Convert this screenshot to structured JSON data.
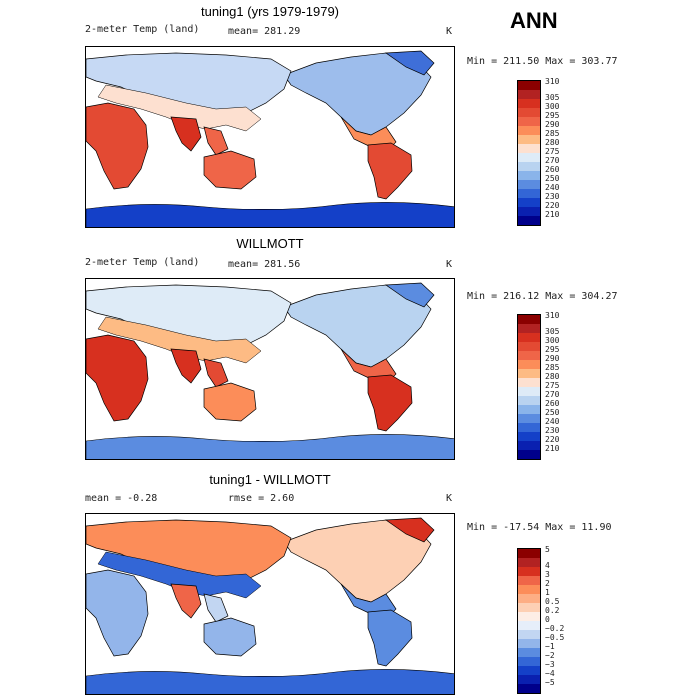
{
  "season": "ANN",
  "panels": [
    {
      "title": "tuning1 (yrs 1979-1979)",
      "left_label": "2-meter Temp (land)",
      "mean_label": "mean= 281.29",
      "unit": "K",
      "minmax": "Min = 211.50 Max = 303.77",
      "colorbar_labels": [
        "310",
        "305",
        "300",
        "295",
        "290",
        "285",
        "280",
        "275",
        "270",
        "260",
        "250",
        "240",
        "230",
        "220",
        "210"
      ],
      "colorbar_colors": [
        "#8b0000",
        "#b22222",
        "#d7301f",
        "#e34a33",
        "#ef6548",
        "#fc8d59",
        "#fdbb84",
        "#fde0d0",
        "#deebf7",
        "#b9d3f0",
        "#8ab4ea",
        "#5b8ce0",
        "#3366d6",
        "#1440c8",
        "#0a20b0",
        "#00008b"
      ]
    },
    {
      "title": "WILLMOTT",
      "left_label": "2-meter Temp (land)",
      "mean_label": "mean= 281.56",
      "unit": "K",
      "minmax": "Min = 216.12 Max = 304.27",
      "colorbar_labels": [
        "310",
        "305",
        "300",
        "295",
        "290",
        "285",
        "280",
        "275",
        "270",
        "260",
        "250",
        "240",
        "230",
        "220",
        "210"
      ],
      "colorbar_colors": [
        "#8b0000",
        "#b22222",
        "#d7301f",
        "#e34a33",
        "#ef6548",
        "#fc8d59",
        "#fdbb84",
        "#fde0d0",
        "#deebf7",
        "#b9d3f0",
        "#8ab4ea",
        "#5b8ce0",
        "#3366d6",
        "#1440c8",
        "#0a20b0",
        "#00008b"
      ]
    },
    {
      "title": "tuning1 - WILLMOTT",
      "left_label": "mean =   -0.28",
      "mean_label": "rmse =    2.60",
      "unit": "K",
      "minmax": "Min = -17.54 Max =   11.90",
      "colorbar_labels": [
        "5",
        "4",
        "3",
        "2",
        "1",
        "0.5",
        "0.2",
        "0",
        "−0.2",
        "−0.5",
        "−1",
        "−2",
        "−3",
        "−4",
        "−5"
      ],
      "colorbar_colors": [
        "#8b0000",
        "#b22222",
        "#d7301f",
        "#ef6548",
        "#fc8d59",
        "#fdae84",
        "#fdd0b4",
        "#fdeee6",
        "#e6eefa",
        "#c2d6f2",
        "#93b5ea",
        "#5b8ce0",
        "#3366d6",
        "#1440c8",
        "#0a20b0",
        "#00008b"
      ]
    }
  ]
}
